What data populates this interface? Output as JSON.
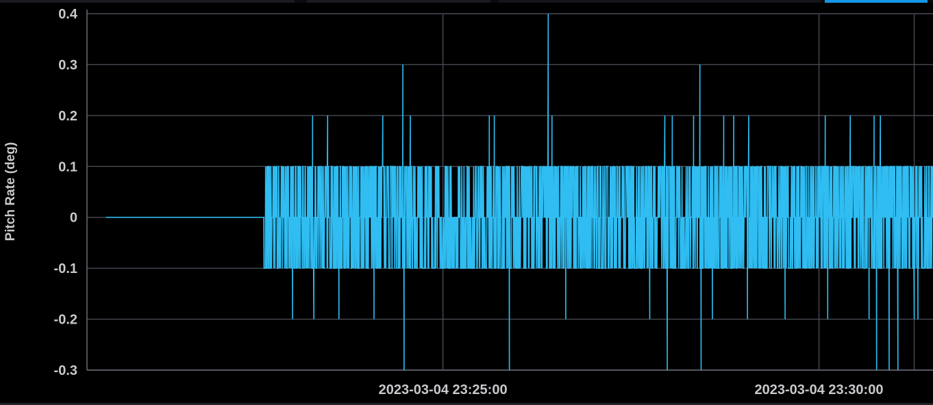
{
  "colors": {
    "series": "#2fbdf2",
    "grid": "#4a4a55",
    "text": "#c8c8cc",
    "background": "#000000",
    "active_tab": "#1497e8"
  },
  "chart_data": {
    "type": "line",
    "ylabel": "Pitch Rate (deg)",
    "xlabel": "",
    "title": "",
    "ylim": [
      -0.3,
      0.4
    ],
    "yticks": [
      "0.4",
      "0.3",
      "0.2",
      "0.1",
      "0",
      "-0.1",
      "-0.2",
      "-0.3"
    ],
    "ytick_values": [
      0.4,
      0.3,
      0.2,
      0.1,
      0,
      -0.1,
      -0.2,
      -0.3
    ],
    "xlim": [
      "2023-03-04 23:20:16",
      "2023-03-04 23:31:31"
    ],
    "xticks": [
      "2023-03-04 23:25:00",
      "2023-03-04 23:30:00"
    ],
    "x_gridlines": [
      "2023-03-04 23:25:00",
      "2023-03-04 23:30:00",
      "2023-03-04 23:31:16"
    ],
    "grid": true,
    "series": [
      {
        "x_start": "2023-03-04 23:20:31",
        "x_end": "2023-03-04 23:31:31",
        "values_summary": "0 until about 23:22:37, then oscillating mainly between -0.1 and 0.1 with spikes",
        "spikes": [
          {
            "x": "2023-03-04 23:22:38",
            "y": -0.1
          },
          {
            "x": "2023-03-04 23:22:45",
            "y": -0.1
          },
          {
            "x": "2023-03-04 23:23:00",
            "y": -0.2
          },
          {
            "x": "2023-03-04 23:23:16",
            "y": 0.2
          },
          {
            "x": "2023-03-04 23:23:17",
            "y": -0.2
          },
          {
            "x": "2023-03-04 23:23:28",
            "y": 0.2
          },
          {
            "x": "2023-03-04 23:23:37",
            "y": -0.2
          },
          {
            "x": "2023-03-04 23:24:05",
            "y": -0.2
          },
          {
            "x": "2023-03-04 23:24:12",
            "y": 0.2
          },
          {
            "x": "2023-03-04 23:24:28",
            "y": 0.3
          },
          {
            "x": "2023-03-04 23:24:29",
            "y": -0.3
          },
          {
            "x": "2023-03-04 23:24:34",
            "y": 0.2
          },
          {
            "x": "2023-03-04 23:25:37",
            "y": 0.2
          },
          {
            "x": "2023-03-04 23:25:41",
            "y": 0.2
          },
          {
            "x": "2023-03-04 23:25:53",
            "y": -0.3
          },
          {
            "x": "2023-03-04 23:26:24",
            "y": 0.4
          },
          {
            "x": "2023-03-04 23:26:27",
            "y": 0.2
          },
          {
            "x": "2023-03-04 23:26:38",
            "y": -0.2
          },
          {
            "x": "2023-03-04 23:27:45",
            "y": -0.2
          },
          {
            "x": "2023-03-04 23:27:57",
            "y": 0.2
          },
          {
            "x": "2023-03-04 23:27:59",
            "y": -0.3
          },
          {
            "x": "2023-03-04 23:28:03",
            "y": 0.2
          },
          {
            "x": "2023-03-04 23:28:20",
            "y": 0.2
          },
          {
            "x": "2023-03-04 23:28:25",
            "y": 0.3
          },
          {
            "x": "2023-03-04 23:28:26",
            "y": -0.3
          },
          {
            "x": "2023-03-04 23:28:35",
            "y": -0.2
          },
          {
            "x": "2023-03-04 23:28:44",
            "y": 0.2
          },
          {
            "x": "2023-03-04 23:28:52",
            "y": 0.2
          },
          {
            "x": "2023-03-04 23:29:03",
            "y": -0.2
          },
          {
            "x": "2023-03-04 23:29:04",
            "y": 0.2
          },
          {
            "x": "2023-03-04 23:29:33",
            "y": -0.2
          },
          {
            "x": "2023-03-04 23:30:05",
            "y": 0.2
          },
          {
            "x": "2023-03-04 23:30:07",
            "y": -0.2
          },
          {
            "x": "2023-03-04 23:30:25",
            "y": 0.2
          },
          {
            "x": "2023-03-04 23:30:40",
            "y": -0.2
          },
          {
            "x": "2023-03-04 23:30:44",
            "y": 0.2
          },
          {
            "x": "2023-03-04 23:30:46",
            "y": -0.3
          },
          {
            "x": "2023-03-04 23:30:49",
            "y": 0.2
          },
          {
            "x": "2023-03-04 23:30:56",
            "y": -0.3
          },
          {
            "x": "2023-03-04 23:31:03",
            "y": -0.3
          },
          {
            "x": "2023-03-04 23:31:16",
            "y": -0.2
          },
          {
            "x": "2023-03-04 23:31:19",
            "y": -0.2
          }
        ]
      }
    ]
  }
}
